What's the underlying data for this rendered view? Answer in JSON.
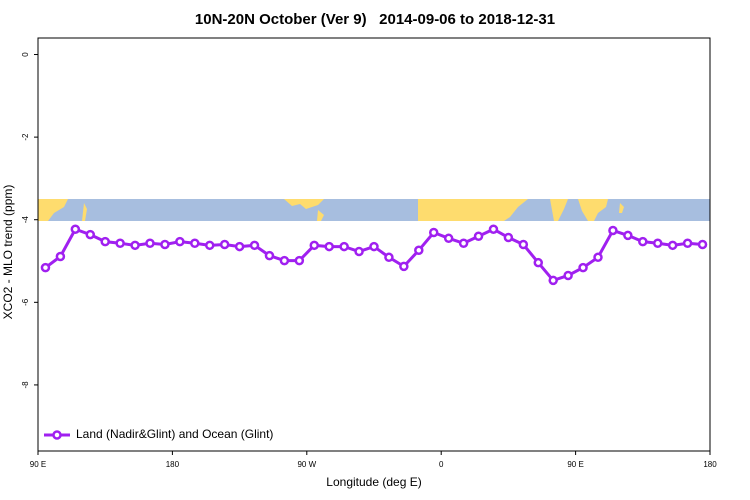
{
  "chart_data": {
    "type": "line",
    "title": "10N-20N October (Ver 9)   2014-09-06 to 2018-12-31",
    "xlabel": "Longitude (deg E)",
    "ylabel": "XCO2 - MLO trend (ppm)",
    "xlim": [
      90,
      540
    ],
    "ylim": [
      -9.6,
      0.4
    ],
    "xticks": [
      {
        "value": 90,
        "label": "90 E"
      },
      180,
      {
        "value": 270,
        "label": "90 W"
      },
      {
        "value": 360,
        "label": "0"
      },
      {
        "value": 450,
        "label": "90 E"
      },
      {
        "value": 540,
        "label": "180"
      }
    ],
    "yticks": [
      0,
      -2,
      -4,
      -6,
      -8
    ],
    "legend": "bottom left",
    "x": [
      95,
      105,
      115,
      125,
      135,
      145,
      155,
      165,
      175,
      185,
      195,
      205,
      215,
      225,
      235,
      245,
      255,
      265,
      275,
      285,
      295,
      305,
      315,
      325,
      335,
      345,
      355,
      365,
      375,
      385,
      395,
      405,
      415,
      425,
      435,
      445,
      455,
      465,
      475,
      485,
      495,
      505,
      515,
      525,
      535
    ],
    "series": [
      {
        "name": "Land (Nadir&Glint) and Ocean (Glint)",
        "color": "#a020f0",
        "values": [
          -5.16,
          -4.89,
          -4.23,
          -4.36,
          -4.53,
          -4.57,
          -4.62,
          -4.57,
          -4.6,
          -4.53,
          -4.57,
          -4.62,
          -4.6,
          -4.65,
          -4.62,
          -4.87,
          -4.99,
          -4.99,
          -4.62,
          -4.65,
          -4.65,
          -4.77,
          -4.65,
          -4.91,
          -5.13,
          -4.74,
          -4.31,
          -4.45,
          -4.57,
          -4.4,
          -4.23,
          -4.43,
          -4.6,
          -5.04,
          -5.47,
          -5.35,
          -5.16,
          -4.91,
          -4.26,
          -4.38,
          -4.53,
          -4.57,
          -4.62,
          -4.57,
          -4.6
        ]
      }
    ]
  }
}
